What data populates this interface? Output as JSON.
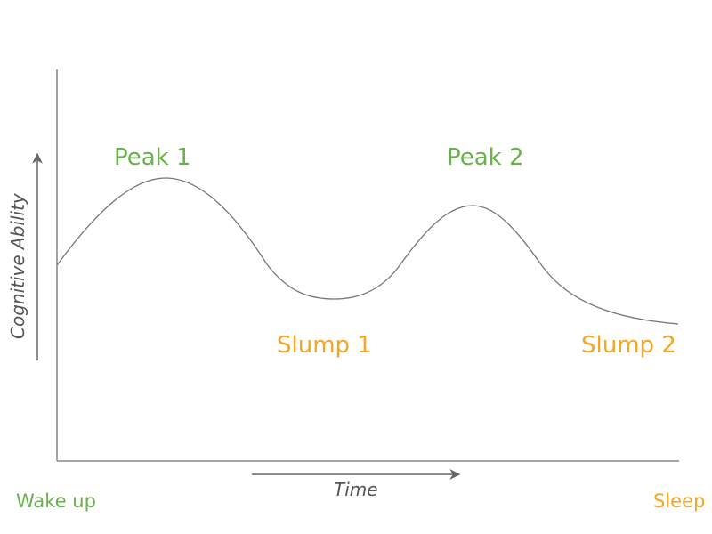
{
  "diagram": {
    "y_axis_label": "Cognitive Ability",
    "x_axis_label": "Time",
    "labels": {
      "peak1": "Peak 1",
      "peak2": "Peak 2",
      "slump1": "Slump 1",
      "slump2": "Slump 2",
      "start": "Wake up",
      "end": "Sleep"
    },
    "colors": {
      "peak": "#6ab04c",
      "slump": "#f5a623",
      "axis": "#888888",
      "curve": "#777777"
    }
  }
}
